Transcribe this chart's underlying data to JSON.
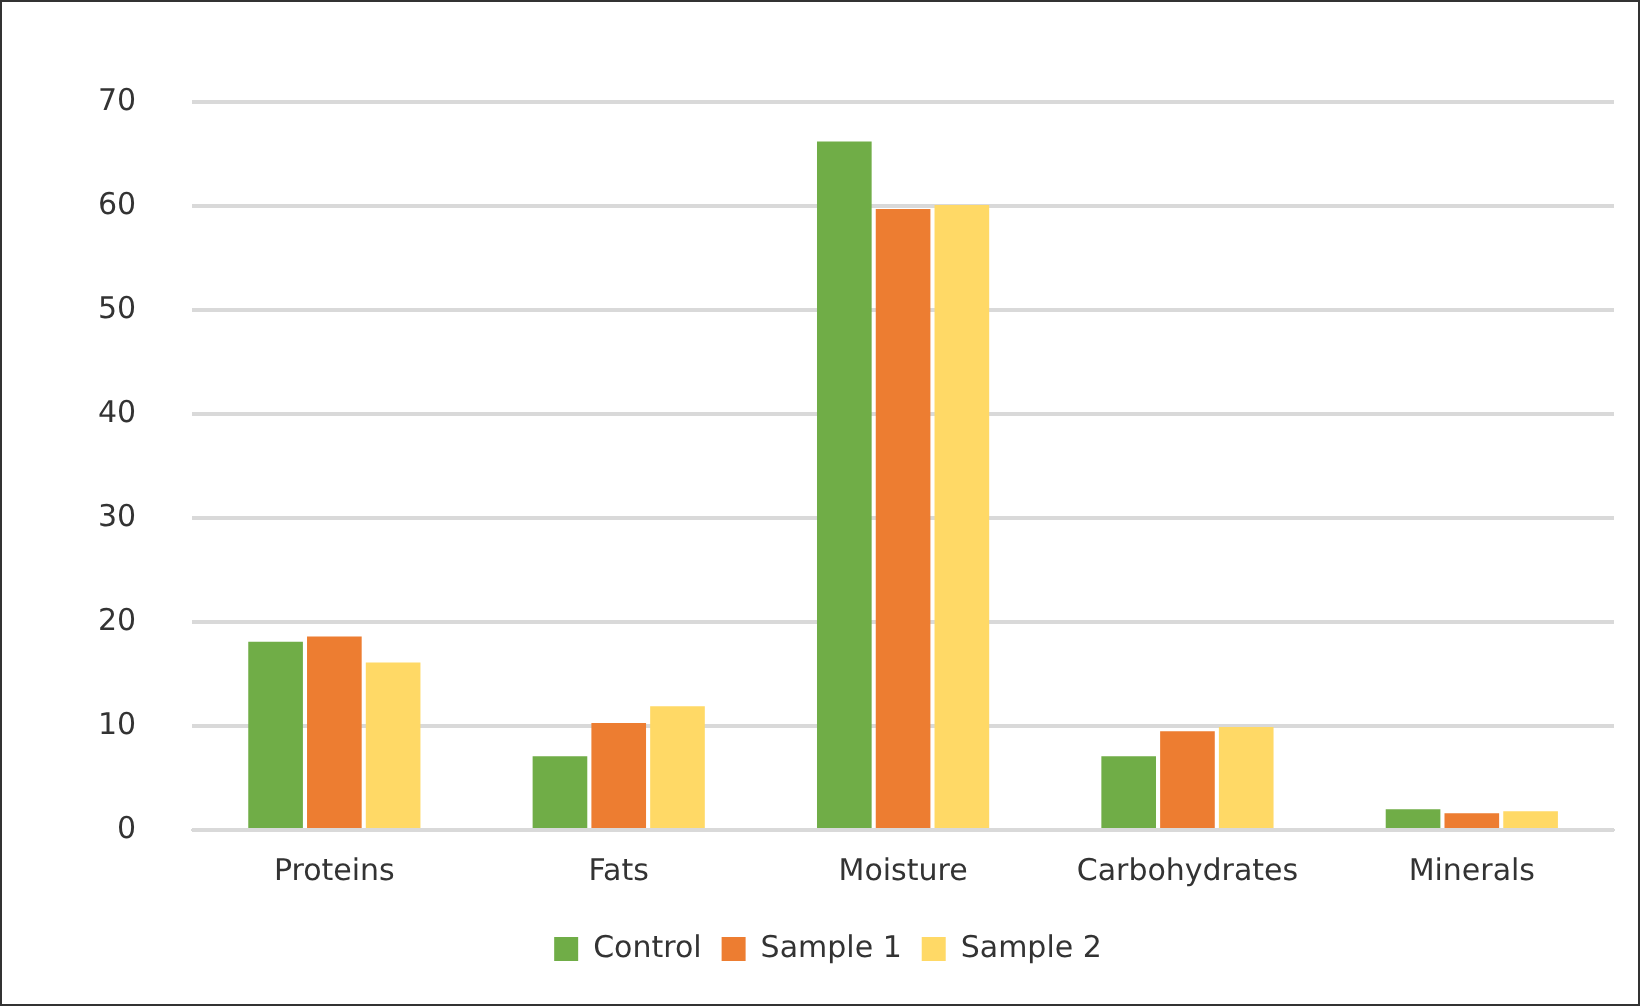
{
  "chart_data": {
    "type": "bar",
    "categories": [
      "Proteins",
      "Fats",
      "Moisture",
      "Carbohydrates",
      "Minerals"
    ],
    "series": [
      {
        "name": "Control",
        "color": "#70ad47",
        "values": [
          18.1,
          7.1,
          66.2,
          7.1,
          2.0
        ]
      },
      {
        "name": "Sample 1",
        "color": "#ed7d31",
        "values": [
          18.6,
          10.3,
          59.7,
          9.5,
          1.6
        ]
      },
      {
        "name": "Sample 2",
        "color": "#ffd966",
        "values": [
          16.1,
          11.9,
          60.1,
          9.9,
          1.8
        ]
      }
    ],
    "ylim": [
      0,
      70
    ],
    "yticks": [
      0,
      10,
      20,
      30,
      40,
      50,
      60,
      70
    ],
    "grid": "y",
    "legend": "bottom"
  }
}
